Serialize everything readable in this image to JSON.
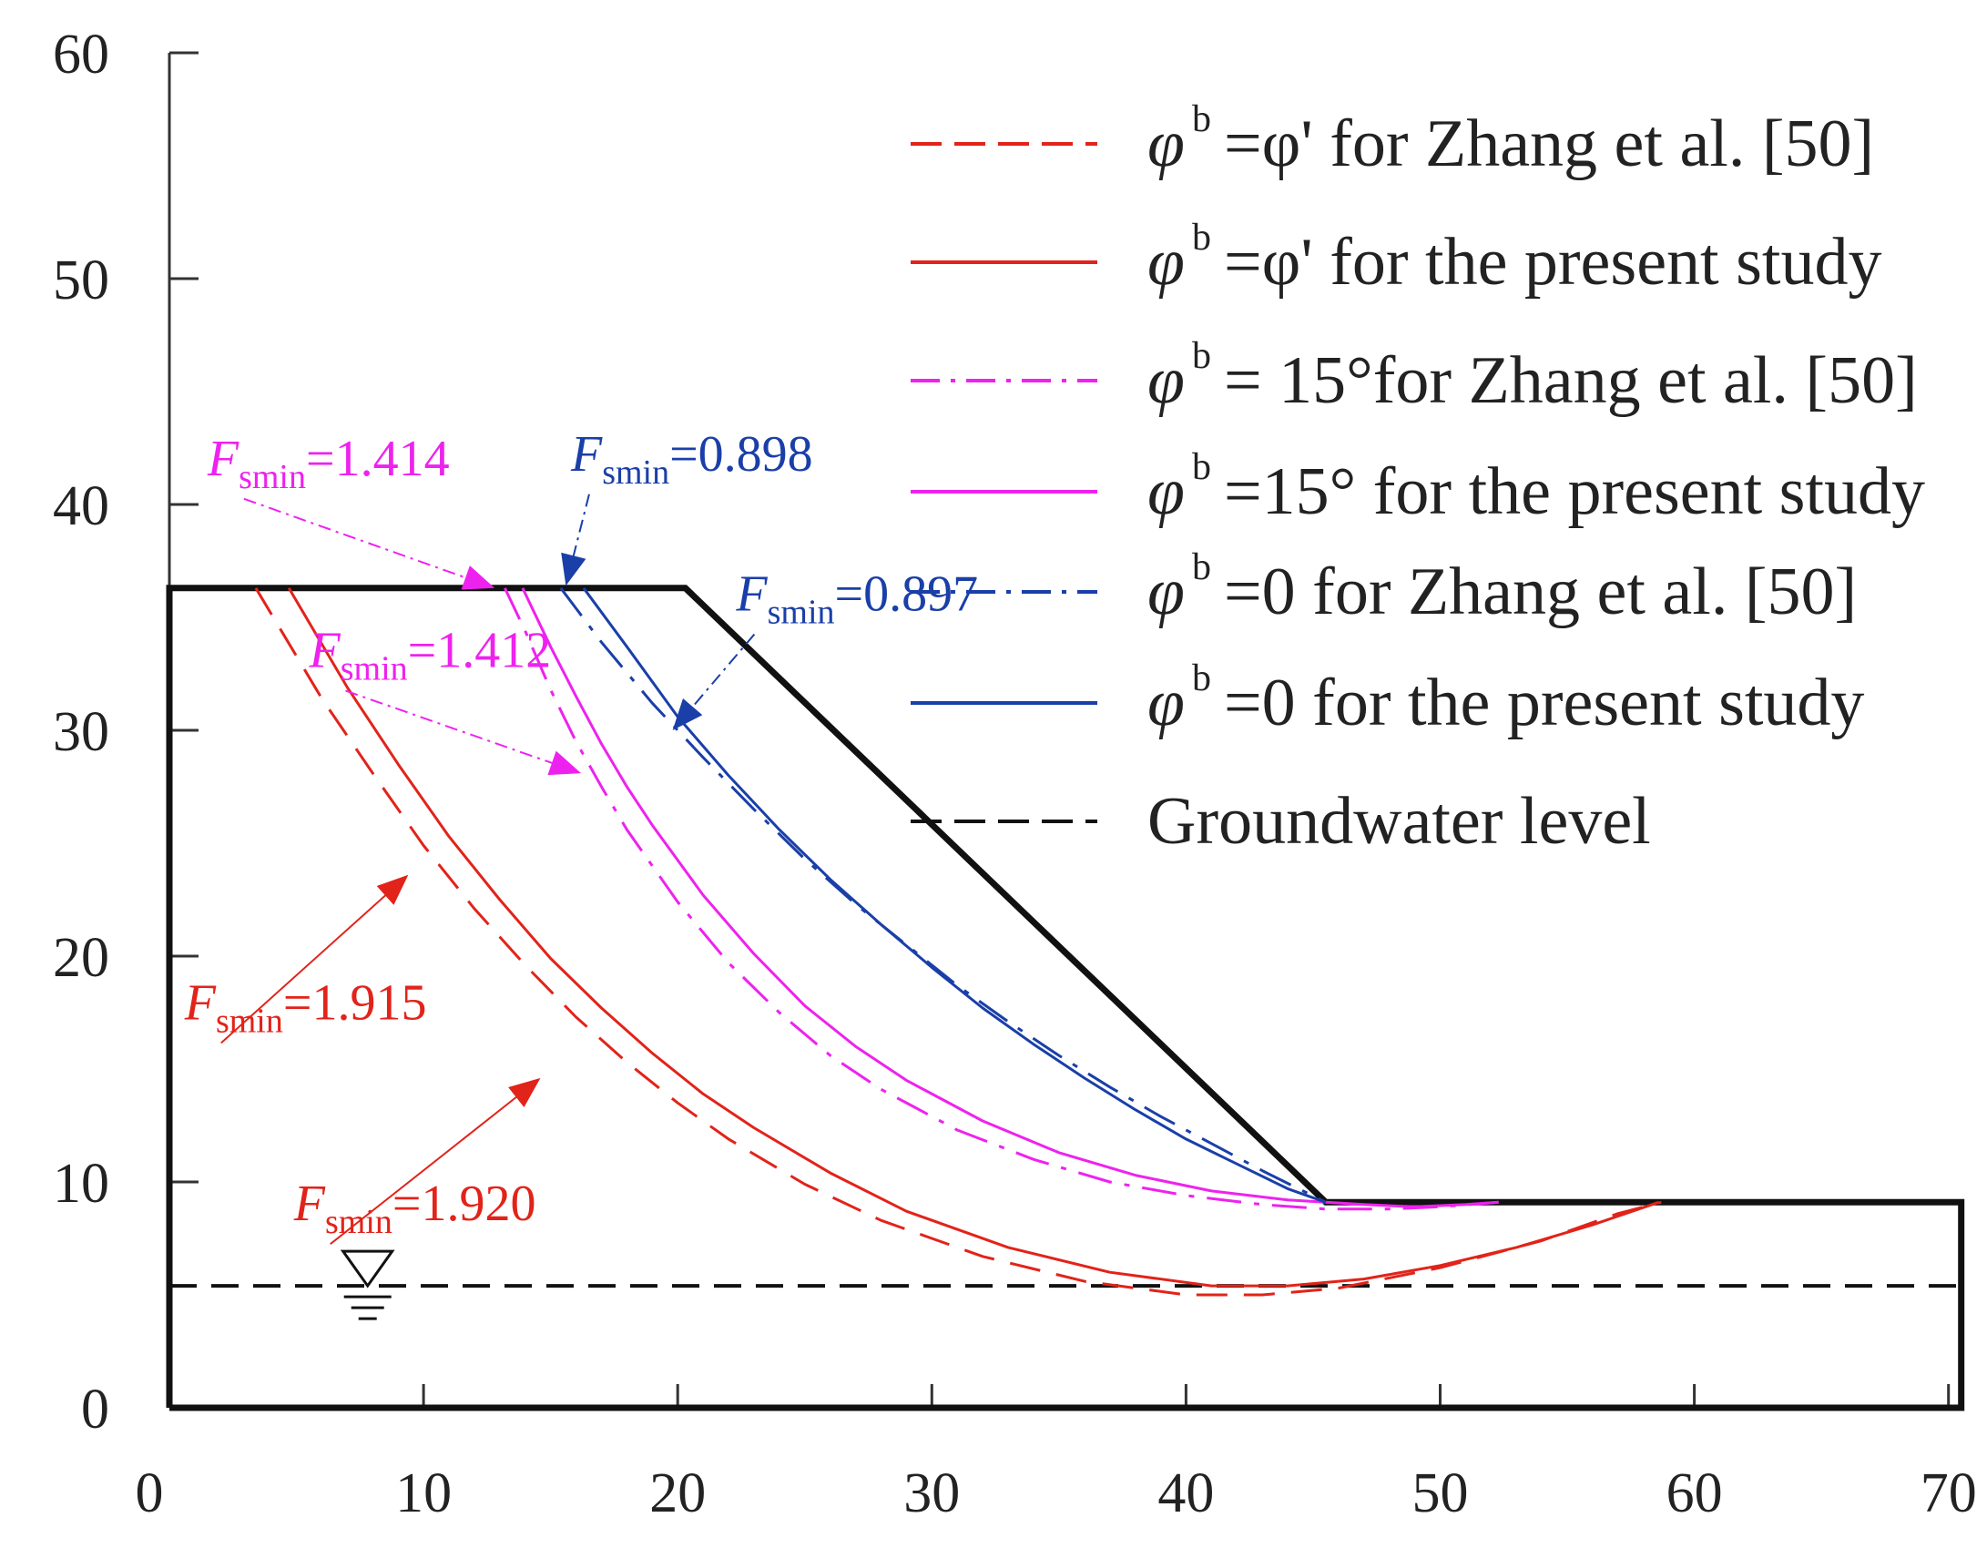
{
  "chart_data": {
    "type": "line",
    "title": "",
    "xlabel": "",
    "ylabel": "",
    "xlim": [
      0,
      70
    ],
    "ylim": [
      0,
      60
    ],
    "x_ticks": [
      "0",
      "10",
      "20",
      "30",
      "40",
      "50",
      "60",
      "70"
    ],
    "y_ticks": [
      "0",
      "10",
      "20",
      "30",
      "40",
      "50",
      "60"
    ],
    "slope_geometry": {
      "name": "Slope profile",
      "x": [
        0,
        0,
        20.3,
        45.5,
        70.5,
        70.5,
        0
      ],
      "y": [
        0,
        36.3,
        36.3,
        9.1,
        9.1,
        0,
        0
      ]
    },
    "groundwater": {
      "name": "Groundwater level",
      "x": [
        0,
        70.5
      ],
      "y": [
        5.4,
        5.4
      ]
    },
    "series": [
      {
        "name": "φb=φ' for Zhang et al. [50]",
        "color": "#e2231a",
        "dash": "dashed",
        "x": [
          3.4,
          6,
          8,
          10,
          12,
          14,
          16,
          18,
          20,
          22,
          25,
          28,
          32,
          36,
          40,
          43,
          46,
          50,
          54,
          57,
          58.7
        ],
        "y": [
          36.3,
          31.4,
          28.1,
          24.9,
          22.1,
          19.6,
          17.3,
          15.3,
          13.5,
          11.9,
          9.9,
          8.3,
          6.7,
          5.6,
          5.0,
          5.0,
          5.3,
          6.2,
          7.4,
          8.6,
          9.1
        ]
      },
      {
        "name": "φb=φ' for the present study",
        "color": "#e2231a",
        "dash": "solid",
        "x": [
          4.7,
          7,
          9,
          11,
          13,
          15,
          17,
          19,
          21,
          23,
          26,
          29,
          33,
          37,
          41,
          44,
          47,
          50,
          53,
          56,
          58.6
        ],
        "y": [
          36.3,
          31.9,
          28.5,
          25.3,
          22.5,
          19.9,
          17.7,
          15.7,
          13.9,
          12.4,
          10.4,
          8.7,
          7.1,
          6.0,
          5.4,
          5.4,
          5.7,
          6.3,
          7.1,
          8.1,
          9.1
        ]
      },
      {
        "name": "φb= 15°for Zhang et al. [50]",
        "color": "#ee22ee",
        "dash": "dashdot",
        "x": [
          13.2,
          14,
          15,
          16,
          17,
          18,
          20,
          22,
          24,
          26,
          28,
          31,
          34,
          37,
          40,
          43,
          45.5,
          48,
          50,
          52.3
        ],
        "y": [
          36.3,
          34.4,
          31.8,
          29.5,
          27.5,
          25.6,
          22.4,
          19.7,
          17.5,
          15.6,
          14.1,
          12.3,
          11.0,
          10.0,
          9.4,
          9.0,
          8.8,
          8.8,
          8.9,
          9.1
        ]
      },
      {
        "name": "φb=15° for the present study",
        "color": "#ee22ee",
        "dash": "solid",
        "x": [
          13.9,
          15,
          16,
          17,
          18,
          19,
          21,
          23,
          25,
          27,
          29,
          32,
          35,
          38,
          41,
          44,
          45.5,
          47,
          49,
          51,
          52.3
        ],
        "y": [
          36.3,
          33.7,
          31.5,
          29.4,
          27.5,
          25.8,
          22.7,
          20.1,
          17.8,
          16.0,
          14.5,
          12.7,
          11.3,
          10.3,
          9.6,
          9.2,
          9.1,
          9.0,
          8.9,
          9.0,
          9.1
        ]
      },
      {
        "name": "φb=0 for Zhang et al. [50]",
        "color": "#1a3fa8",
        "dash": "dashdot",
        "x": [
          15.4,
          17,
          19,
          21,
          23,
          25,
          27,
          29,
          31,
          33,
          35,
          37,
          39,
          41,
          43,
          45.5
        ],
        "y": [
          36.3,
          33.9,
          31.2,
          28.8,
          26.5,
          24.3,
          22.3,
          20.5,
          18.7,
          17.1,
          15.6,
          14.2,
          12.9,
          11.7,
          10.5,
          9.1
        ]
      },
      {
        "name": "φb=0 for the present study",
        "color": "#1a3fa8",
        "dash": "solid",
        "x": [
          16.3,
          18,
          20,
          22,
          24,
          26,
          28,
          30,
          32,
          34,
          36,
          38,
          40,
          42,
          44,
          45.5
        ],
        "y": [
          36.3,
          33.7,
          30.6,
          28.0,
          25.6,
          23.4,
          21.4,
          19.5,
          17.7,
          16.1,
          14.6,
          13.2,
          11.9,
          10.8,
          9.7,
          9.1
        ]
      }
    ],
    "legend": {
      "location": "top-right",
      "entries": [
        {
          "symbol": "φ",
          "sup": "b",
          "text": "=φ' for Zhang et al. [50]",
          "color": "#e2231a",
          "dash": "dashed"
        },
        {
          "symbol": "φ",
          "sup": "b",
          "text": "=φ' for the present study",
          "color": "#e2231a",
          "dash": "solid"
        },
        {
          "symbol": "φ",
          "sup": "b",
          "text": "= 15°for Zhang et al. [50]",
          "color": "#ee22ee",
          "dash": "dashdot"
        },
        {
          "symbol": "φ",
          "sup": "b",
          "text": "=15° for the present study",
          "color": "#ee22ee",
          "dash": "solid"
        },
        {
          "symbol": "φ",
          "sup": "b",
          "text": "=0 for Zhang et al. [50]",
          "color": "#1a3fa8",
          "dash": "dashdot"
        },
        {
          "symbol": "φ",
          "sup": "b",
          "text": "=0 for the present study",
          "color": "#1a3fa8",
          "dash": "solid"
        },
        {
          "symbol": "",
          "sup": "",
          "text": "Groundwater level",
          "color": "#111111",
          "dash": "dashed"
        }
      ]
    },
    "annotations": [
      {
        "F": "F",
        "sub": "smin",
        "value": "=1.414",
        "color": "#ee22ee",
        "label_at": [
          1.5,
          41.3
        ],
        "target": [
          12.8,
          36.3
        ]
      },
      {
        "F": "F",
        "sub": "smin",
        "value": "=0.898",
        "color": "#1a3fa8",
        "label_at": [
          15.8,
          41.5
        ],
        "target": [
          15.6,
          36.4
        ]
      },
      {
        "F": "F",
        "sub": "smin",
        "value": "=0.897",
        "color": "#1a3fa8",
        "label_at": [
          22.3,
          35.3
        ],
        "target": [
          19.8,
          30.0
        ]
      },
      {
        "F": "F",
        "sub": "smin",
        "value": "=1.412",
        "color": "#ee22ee",
        "label_at": [
          5.5,
          32.8
        ],
        "target": [
          16.2,
          28.1
        ]
      },
      {
        "F": "F",
        "sub": "smin",
        "value": "=1.915",
        "color": "#e2231a",
        "label_at": [
          0.6,
          17.2
        ],
        "target": [
          9.4,
          23.6
        ]
      },
      {
        "F": "F",
        "sub": "smin",
        "value": "=1.920",
        "color": "#e2231a",
        "label_at": [
          4.9,
          8.3
        ],
        "target": [
          14.6,
          14.6
        ]
      }
    ]
  }
}
